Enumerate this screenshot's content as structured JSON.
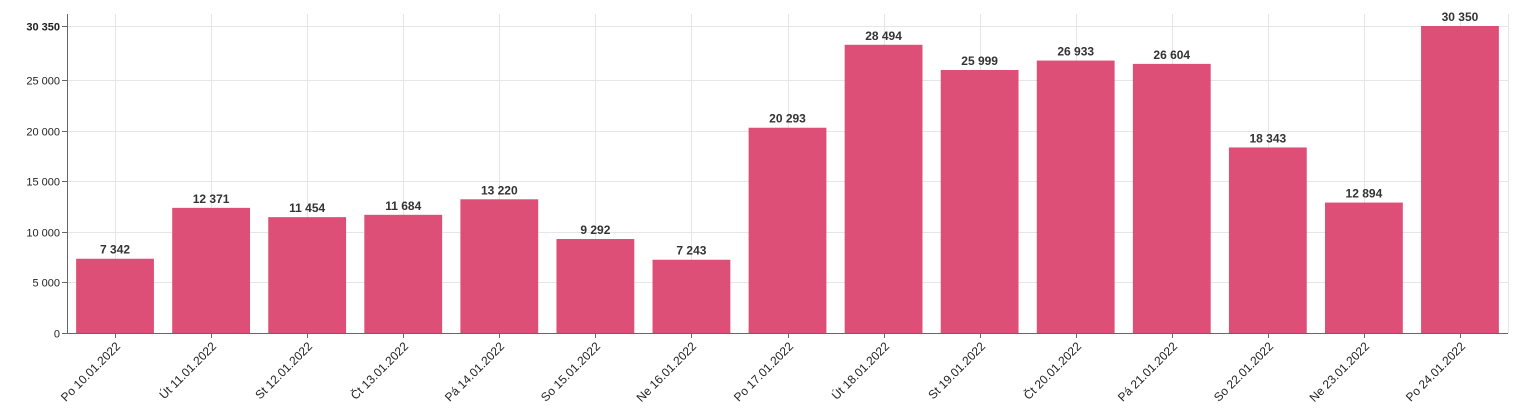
{
  "chart_data": {
    "type": "bar",
    "title": "",
    "xlabel": "",
    "ylabel": "",
    "categories": [
      "Po 10.01.2022",
      "Út 11.01.2022",
      "St 12.01.2022",
      "Čt 13.01.2022",
      "Pá 14.01.2022",
      "So 15.01.2022",
      "Ne 16.01.2022",
      "Po 17.01.2022",
      "Út 18.01.2022",
      "St 19.01.2022",
      "Čt 20.01.2022",
      "Pá 21.01.2022",
      "So 22.01.2022",
      "Ne 23.01.2022",
      "Po 24.01.2022"
    ],
    "values": [
      7342,
      12371,
      11454,
      11684,
      13220,
      9292,
      7243,
      20293,
      28494,
      25999,
      26933,
      26604,
      18343,
      12894,
      30350
    ],
    "value_labels": [
      "7 342",
      "12 371",
      "11 454",
      "11 684",
      "13 220",
      "9 292",
      "7 243",
      "20 293",
      "28 494",
      "25 999",
      "26 933",
      "26 604",
      "18 343",
      "12 894",
      "30 350"
    ],
    "ylim": [
      0,
      30350
    ],
    "y_ticks": [
      0,
      5000,
      10000,
      15000,
      20000,
      25000,
      30350
    ],
    "y_tick_labels": [
      "0",
      "5 000",
      "10 000",
      "15 000",
      "20 000",
      "25 000",
      "30 350"
    ],
    "grid": true,
    "legend": "none",
    "bar_color": "#dc4671"
  }
}
